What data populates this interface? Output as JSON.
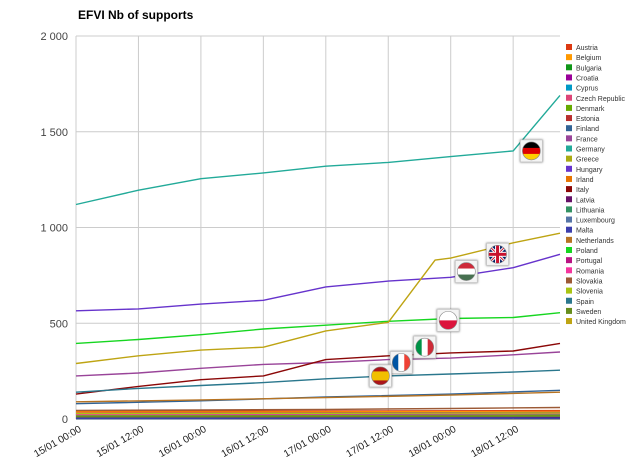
{
  "chart_data": {
    "type": "line",
    "title": "EFVI Nb of supports",
    "xlabel": "",
    "ylabel": "",
    "x_range": [
      "15/01 00:00",
      "18/01 21:00"
    ],
    "x_tick_labels": [
      "15/01 00:00",
      "15/01 12:00",
      "16/01 00:00",
      "16/01 12:00",
      "17/01 00:00",
      "17/01 12:00",
      "18/01 00:00",
      "18/01 12:00"
    ],
    "ylim": [
      0,
      2000
    ],
    "y_tick_labels": [
      "0",
      "500",
      "1 000",
      "1 500",
      "2 000"
    ],
    "grid": true,
    "legend_position": "right",
    "series": [
      {
        "name": "Austria",
        "color": "#dc3912",
        "x": [
          "15/01 00:00",
          "16/01 00:00",
          "17/01 00:00",
          "18/01 00:00",
          "18/01 21:00"
        ],
        "values": [
          40,
          41,
          42,
          43,
          44
        ]
      },
      {
        "name": "Belgium",
        "color": "#ff9900",
        "x": [
          "15/01 00:00",
          "16/01 00:00",
          "17/01 00:00",
          "18/01 00:00",
          "18/01 21:00"
        ],
        "values": [
          36,
          36,
          37,
          38,
          39
        ]
      },
      {
        "name": "Bulgaria",
        "color": "#109618",
        "x": [
          "15/01 00:00",
          "16/01 00:00",
          "17/01 00:00",
          "18/01 00:00",
          "18/01 21:00"
        ],
        "values": [
          16,
          17,
          18,
          20,
          22
        ]
      },
      {
        "name": "Croatia",
        "color": "#990099",
        "x": [
          "15/01 00:00",
          "16/01 00:00",
          "17/01 00:00",
          "18/01 00:00",
          "18/01 21:00"
        ],
        "values": [
          19,
          19,
          20,
          21,
          22
        ]
      },
      {
        "name": "Cyprus",
        "color": "#0099c6",
        "x": [
          "15/01 00:00",
          "16/01 00:00",
          "17/01 00:00",
          "18/01 00:00",
          "18/01 21:00"
        ],
        "values": [
          3,
          3,
          4,
          4,
          5
        ]
      },
      {
        "name": "Czech Republic",
        "color": "#dd4477",
        "x": [
          "15/01 00:00",
          "16/01 00:00",
          "17/01 00:00",
          "18/01 00:00",
          "18/01 21:00"
        ],
        "values": [
          9,
          9,
          10,
          11,
          12
        ]
      },
      {
        "name": "Denmark",
        "color": "#66aa00",
        "x": [
          "15/01 00:00",
          "16/01 00:00",
          "17/01 00:00",
          "18/01 00:00",
          "18/01 21:00"
        ],
        "values": [
          13,
          13,
          14,
          16,
          18
        ]
      },
      {
        "name": "Estonia",
        "color": "#b82e2e",
        "x": [
          "15/01 00:00",
          "16/01 00:00",
          "17/01 00:00",
          "18/01 00:00",
          "18/01 21:00"
        ],
        "values": [
          5,
          5,
          6,
          6,
          7
        ]
      },
      {
        "name": "Finland",
        "color": "#316395",
        "x": [
          "15/01 00:00",
          "16/01 00:00",
          "17/01 00:00",
          "18/01 00:00",
          "18/01 21:00"
        ],
        "values": [
          80,
          95,
          115,
          130,
          150
        ]
      },
      {
        "name": "France",
        "color": "#994499",
        "x": [
          "15/01 00:00",
          "15/01 12:00",
          "16/01 00:00",
          "16/01 12:00",
          "17/01 00:00",
          "17/01 12:00",
          "18/01 00:00",
          "18/01 12:00",
          "18/01 21:00"
        ],
        "values": [
          225,
          240,
          265,
          285,
          295,
          310,
          318,
          335,
          350
        ]
      },
      {
        "name": "Germany",
        "color": "#22aa99",
        "x": [
          "15/01 00:00",
          "15/01 12:00",
          "16/01 00:00",
          "16/01 12:00",
          "17/01 00:00",
          "17/01 12:00",
          "18/01 00:00",
          "18/01 12:00",
          "18/01 21:00"
        ],
        "values": [
          1120,
          1195,
          1255,
          1285,
          1320,
          1340,
          1370,
          1400,
          1690
        ]
      },
      {
        "name": "Greece",
        "color": "#aaaa11",
        "x": [
          "15/01 00:00",
          "16/01 00:00",
          "17/01 00:00",
          "18/01 00:00",
          "18/01 21:00"
        ],
        "values": [
          20,
          21,
          22,
          23,
          24
        ]
      },
      {
        "name": "Hungary",
        "color": "#6633cc",
        "x": [
          "15/01 00:00",
          "15/01 12:00",
          "16/01 00:00",
          "16/01 12:00",
          "17/01 00:00",
          "17/01 12:00",
          "18/01 00:00",
          "18/01 12:00",
          "18/01 21:00"
        ],
        "values": [
          565,
          575,
          600,
          620,
          690,
          720,
          740,
          790,
          860
        ]
      },
      {
        "name": "Irland",
        "color": "#e67300",
        "x": [
          "15/01 00:00",
          "16/01 00:00",
          "17/01 00:00",
          "18/01 00:00",
          "18/01 21:00"
        ],
        "values": [
          26,
          27,
          28,
          29,
          30
        ]
      },
      {
        "name": "Italy",
        "color": "#8b0707",
        "x": [
          "15/01 00:00",
          "15/01 12:00",
          "16/01 00:00",
          "16/01 12:00",
          "17/01 00:00",
          "17/01 12:00",
          "18/01 00:00",
          "18/01 12:00",
          "18/01 21:00"
        ],
        "values": [
          130,
          170,
          205,
          225,
          310,
          330,
          345,
          355,
          395
        ]
      },
      {
        "name": "Latvia",
        "color": "#651067",
        "x": [
          "15/01 00:00",
          "16/01 00:00",
          "17/01 00:00",
          "18/01 00:00",
          "18/01 21:00"
        ],
        "values": [
          7,
          7,
          8,
          8,
          9
        ]
      },
      {
        "name": "Lithuania",
        "color": "#329262",
        "x": [
          "15/01 00:00",
          "16/01 00:00",
          "17/01 00:00",
          "18/01 00:00",
          "18/01 21:00"
        ],
        "values": [
          22,
          23,
          24,
          25,
          26
        ]
      },
      {
        "name": "Luxembourg",
        "color": "#5574a6",
        "x": [
          "15/01 00:00",
          "16/01 00:00",
          "17/01 00:00",
          "18/01 00:00",
          "18/01 21:00"
        ],
        "values": [
          11,
          11,
          12,
          13,
          14
        ]
      },
      {
        "name": "Malta",
        "color": "#3b3eac",
        "x": [
          "15/01 00:00",
          "16/01 00:00",
          "17/01 00:00",
          "18/01 00:00",
          "18/01 21:00"
        ],
        "values": [
          3,
          3,
          3,
          4,
          4
        ]
      },
      {
        "name": "Netherlands",
        "color": "#b77322",
        "x": [
          "15/01 00:00",
          "16/01 00:00",
          "17/01 00:00",
          "18/01 00:00",
          "18/01 21:00"
        ],
        "values": [
          90,
          100,
          112,
          125,
          140
        ]
      },
      {
        "name": "Poland",
        "color": "#16d620",
        "x": [
          "15/01 00:00",
          "15/01 12:00",
          "16/01 00:00",
          "16/01 12:00",
          "17/01 00:00",
          "17/01 12:00",
          "18/01 00:00",
          "18/01 12:00",
          "18/01 21:00"
        ],
        "values": [
          395,
          415,
          440,
          470,
          490,
          510,
          525,
          530,
          555
        ]
      },
      {
        "name": "Portugal",
        "color": "#b91383",
        "x": [
          "15/01 00:00",
          "16/01 00:00",
          "17/01 00:00",
          "18/01 00:00",
          "18/01 21:00"
        ],
        "values": [
          30,
          31,
          32,
          33,
          34
        ]
      },
      {
        "name": "Romania",
        "color": "#f4359e",
        "x": [
          "15/01 00:00",
          "16/01 00:00",
          "17/01 00:00",
          "18/01 00:00",
          "18/01 21:00"
        ],
        "values": [
          24,
          25,
          26,
          27,
          28
        ]
      },
      {
        "name": "Slovakia",
        "color": "#9c5935",
        "x": [
          "15/01 00:00",
          "16/01 00:00",
          "17/01 00:00",
          "18/01 00:00",
          "18/01 21:00"
        ],
        "values": [
          45,
          47,
          50,
          55,
          60
        ]
      },
      {
        "name": "Slovenia",
        "color": "#a9c413",
        "x": [
          "15/01 00:00",
          "16/01 00:00",
          "17/01 00:00",
          "18/01 00:00",
          "18/01 21:00"
        ],
        "values": [
          28,
          29,
          30,
          31,
          32
        ]
      },
      {
        "name": "Spain",
        "color": "#2a778d",
        "x": [
          "15/01 00:00",
          "15/01 12:00",
          "16/01 00:00",
          "16/01 12:00",
          "17/01 00:00",
          "17/01 12:00",
          "18/01 00:00",
          "18/01 12:00",
          "18/01 21:00"
        ],
        "values": [
          140,
          160,
          175,
          190,
          210,
          225,
          235,
          245,
          255
        ]
      },
      {
        "name": "Sweden",
        "color": "#668d1c",
        "x": [
          "15/01 00:00",
          "16/01 00:00",
          "17/01 00:00",
          "18/01 00:00",
          "18/01 21:00"
        ],
        "values": [
          12,
          12,
          13,
          14,
          15
        ]
      },
      {
        "name": "United Kingdom",
        "color": "#bea413",
        "x": [
          "15/01 00:00",
          "15/01 12:00",
          "16/01 00:00",
          "16/01 12:00",
          "17/01 00:00",
          "17/01 12:00",
          "17/01 21:00",
          "18/01 00:00",
          "18/01 12:00",
          "18/01 21:00"
        ],
        "values": [
          290,
          330,
          360,
          375,
          460,
          505,
          830,
          840,
          920,
          970
        ]
      }
    ],
    "flag_markers": [
      {
        "country": "Germany",
        "icon": "germany-flag-icon",
        "x": "18/01 15:30",
        "y": 1400,
        "stripes": [
          "#000000",
          "#dd0000",
          "#ffce00"
        ],
        "orientation": "horizontal"
      },
      {
        "country": "United Kingdom",
        "icon": "uk-flag-icon",
        "x": "18/01 09:00",
        "y": 860,
        "stripes": [
          "#012169",
          "#ffffff",
          "#c8102e"
        ],
        "orientation": "union"
      },
      {
        "country": "Hungary",
        "icon": "hungary-flag-icon",
        "x": "18/01 03:00",
        "y": 770,
        "stripes": [
          "#ce2939",
          "#ffffff",
          "#477050"
        ],
        "orientation": "horizontal"
      },
      {
        "country": "Poland",
        "icon": "poland-flag-icon",
        "x": "17/01 23:30",
        "y": 515,
        "stripes": [
          "#ffffff",
          "#dc143c"
        ],
        "orientation": "horizontal"
      },
      {
        "country": "Italy",
        "icon": "italy-flag-icon",
        "x": "17/01 19:00",
        "y": 375,
        "stripes": [
          "#009246",
          "#ffffff",
          "#ce2b37"
        ],
        "orientation": "vertical"
      },
      {
        "country": "France",
        "icon": "france-flag-icon",
        "x": "17/01 14:30",
        "y": 295,
        "stripes": [
          "#0055a4",
          "#ffffff",
          "#ef4135"
        ],
        "orientation": "vertical"
      },
      {
        "country": "Spain",
        "icon": "spain-flag-icon",
        "x": "17/01 10:30",
        "y": 225,
        "stripes": [
          "#aa151b",
          "#f1bf00",
          "#aa151b"
        ],
        "orientation": "horizontal"
      }
    ]
  }
}
